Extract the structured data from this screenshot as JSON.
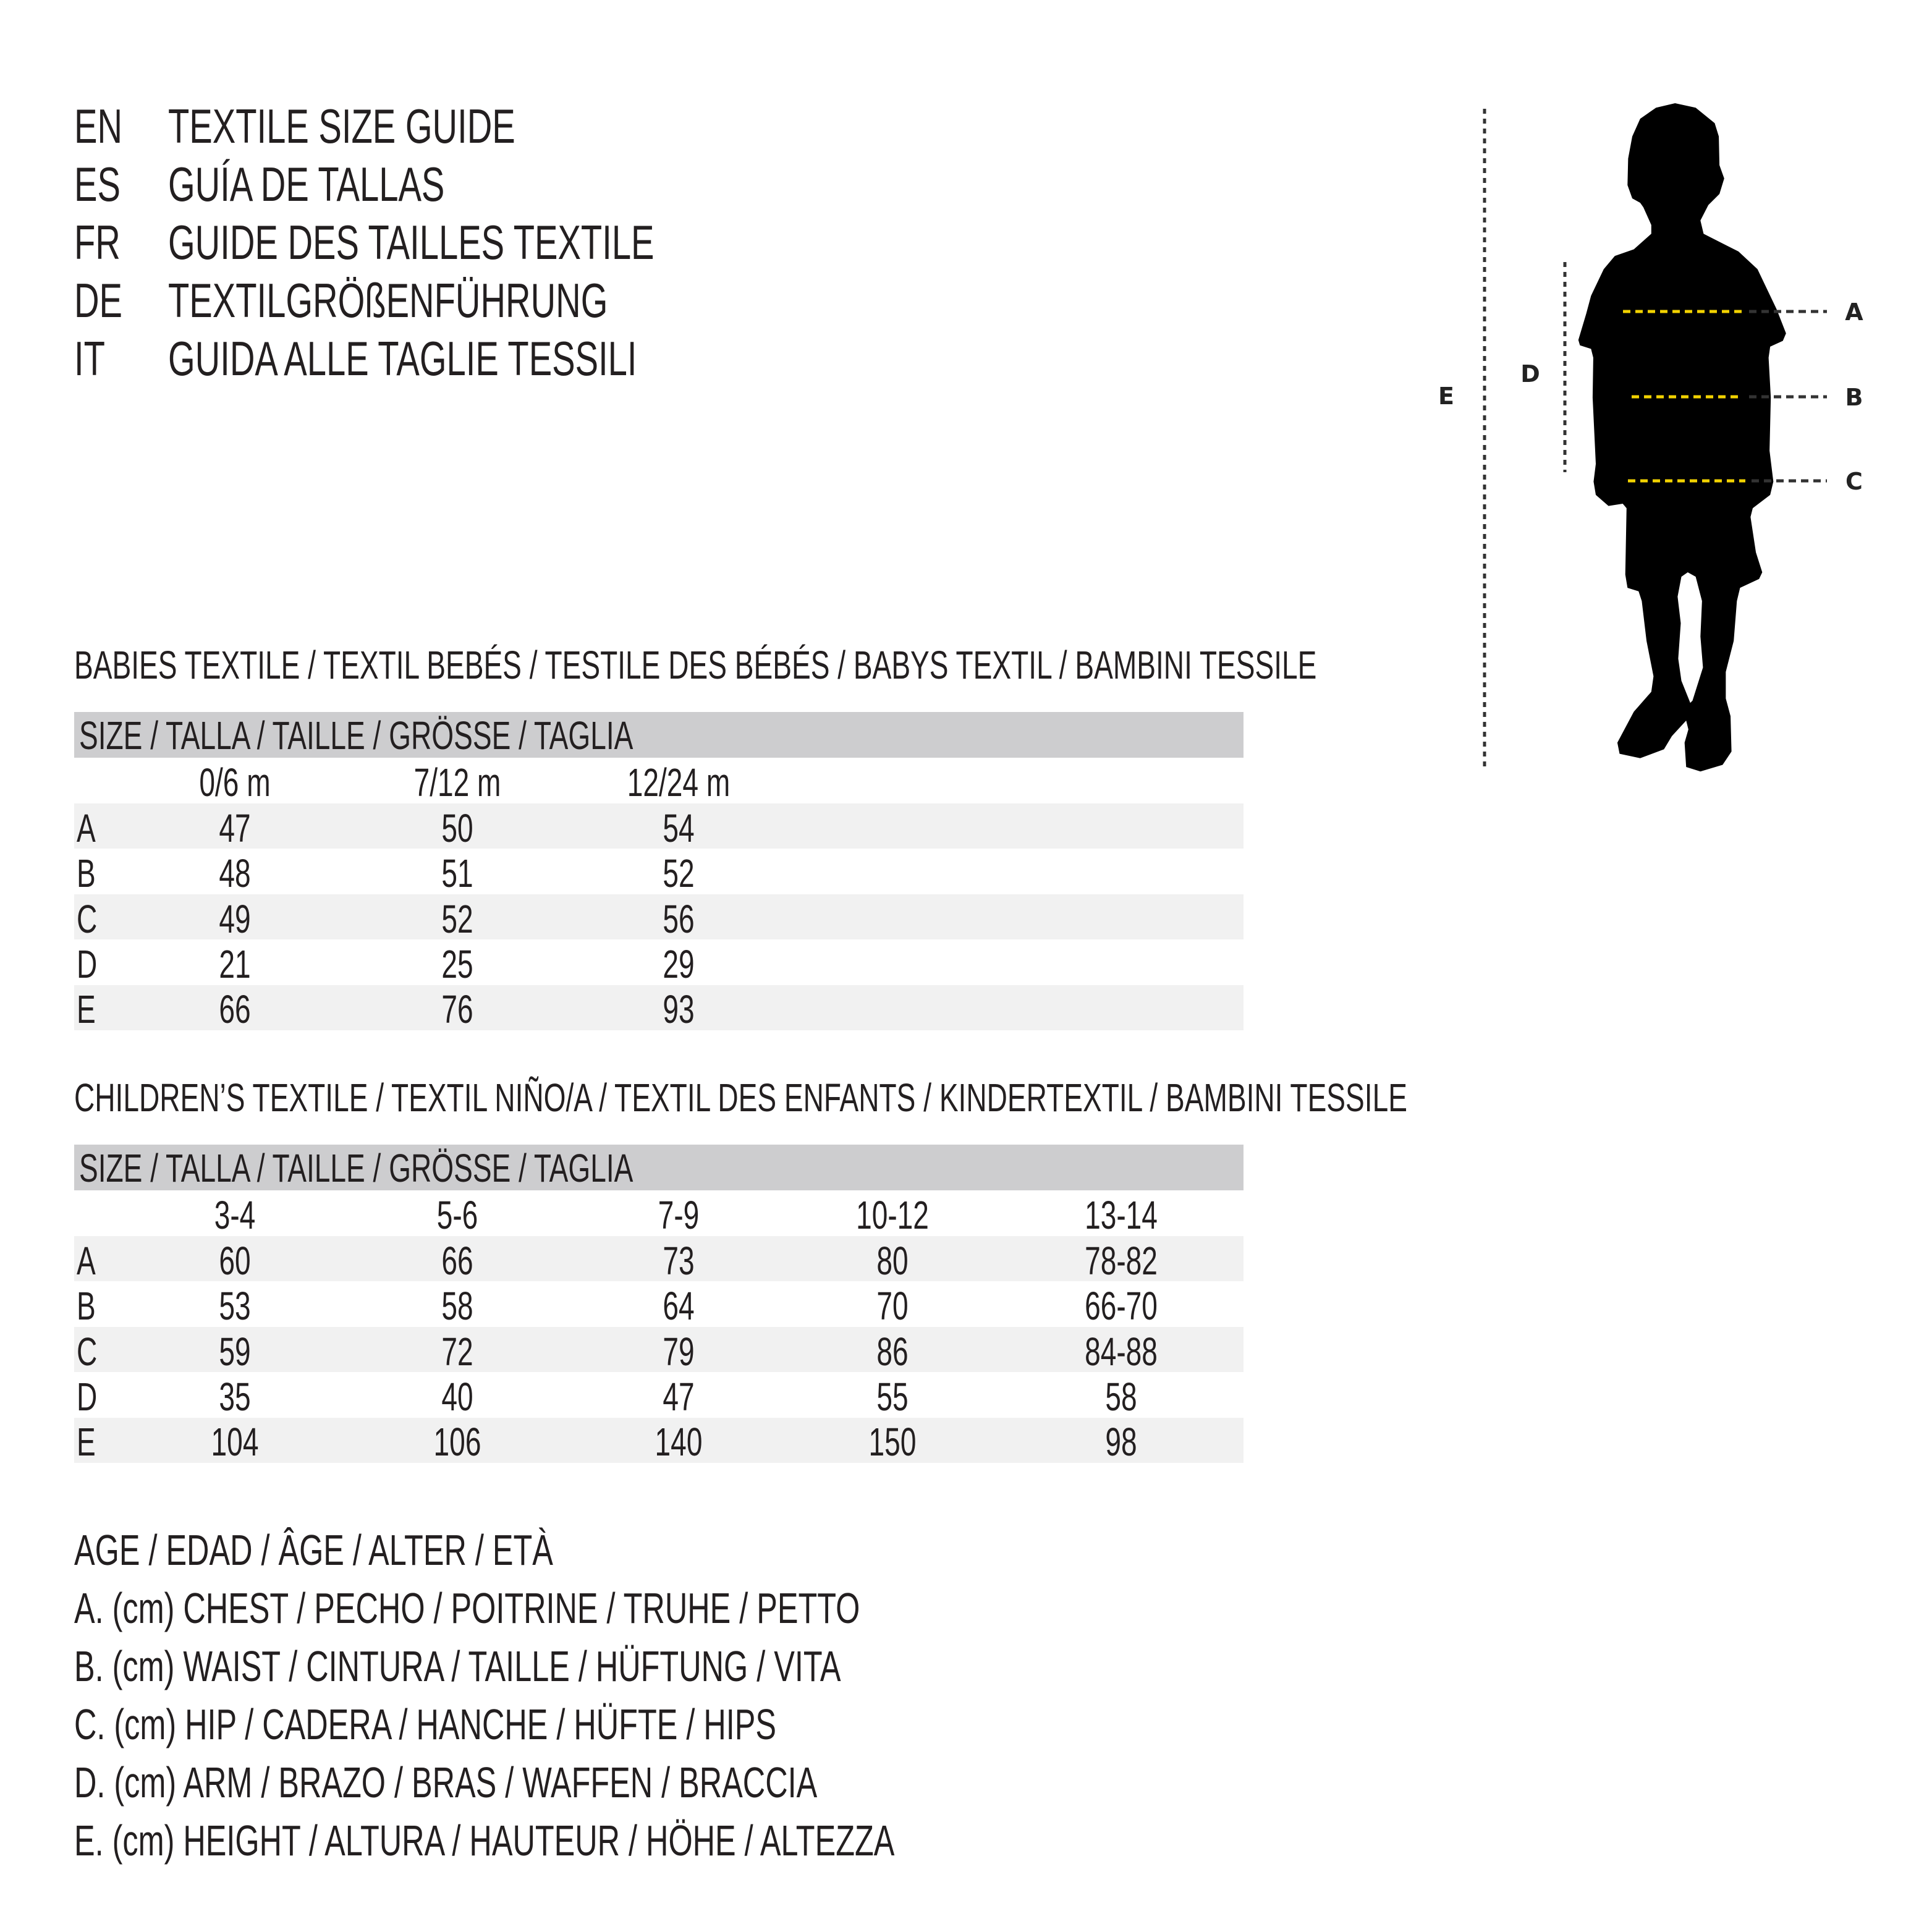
{
  "header": {
    "lines": [
      {
        "code": "EN",
        "text": "TEXTILE SIZE GUIDE"
      },
      {
        "code": "ES",
        "text": "GUÍA DE TALLAS"
      },
      {
        "code": "FR",
        "text": "GUIDE DES TAILLES TEXTILE"
      },
      {
        "code": "DE",
        "text": "TEXTILGRÖßENFÜHRUNG"
      },
      {
        "code": "IT",
        "text": "GUIDA ALLE TAGLIE TESSILI"
      }
    ]
  },
  "babies": {
    "title": "BABIES TEXTILE / TEXTIL BEBÉS / TESTILE DES BÉBÉS / BABYS TEXTIL / BAMBINI TESSILE",
    "size_header": "SIZE / TALLA / TAILLE / GRÖSSE / TAGLIA",
    "columns": [
      "0/6 m",
      "7/12 m",
      "12/24 m"
    ],
    "rows": [
      {
        "label": "A",
        "values": [
          "47",
          "50",
          "54"
        ]
      },
      {
        "label": "B",
        "values": [
          "48",
          "51",
          "52"
        ]
      },
      {
        "label": "C",
        "values": [
          "49",
          "52",
          "56"
        ]
      },
      {
        "label": "D",
        "values": [
          "21",
          "25",
          "29"
        ]
      },
      {
        "label": "E",
        "values": [
          "66",
          "76",
          "93"
        ]
      }
    ]
  },
  "children": {
    "title": "CHILDREN’S TEXTILE / TEXTIL NIÑO/A / TEXTIL DES ENFANTS / KINDERTEXTIL / BAMBINI TESSILE",
    "size_header": "SIZE / TALLA / TAILLE / GRÖSSE / TAGLIA",
    "columns": [
      "3-4",
      "5-6",
      "7-9",
      "10-12",
      "13-14"
    ],
    "rows": [
      {
        "label": "A",
        "values": [
          "60",
          "66",
          "73",
          "80",
          "78-82"
        ]
      },
      {
        "label": "B",
        "values": [
          "53",
          "58",
          "64",
          "70",
          "66-70"
        ]
      },
      {
        "label": "C",
        "values": [
          "59",
          "72",
          "79",
          "86",
          "84-88"
        ]
      },
      {
        "label": "D",
        "values": [
          "35",
          "40",
          "47",
          "55",
          "58"
        ]
      },
      {
        "label": "E",
        "values": [
          "104",
          "106",
          "140",
          "150",
          "98"
        ]
      }
    ]
  },
  "legend": {
    "age": "AGE / EDAD / ÂGE / ALTER / ETÀ",
    "items": [
      "A. (cm) CHEST / PECHO / POITRINE / TRUHE / PETTO",
      "B. (cm) WAIST / CINTURA / TAILLE / HÜFTUNG / VITA",
      "C. (cm) HIP / CADERA / HANCHE / HÜFTE / HIPS",
      "D. (cm) ARM / BRAZO / BRAS / WAFFEN / BRACCIA",
      "E. (cm) HEIGHT / ALTURA / HAUTEUR / HÖHE / ALTEZZA"
    ]
  },
  "diagram": {
    "labels": {
      "a": "A",
      "b": "B",
      "c": "C",
      "d": "D",
      "e": "E"
    },
    "icon": "child-silhouette-icon",
    "colors": {
      "measure_line": "#f2d200",
      "guide_line": "#333333",
      "silhouette": "#000000",
      "header_bar": "#cdcdcf",
      "row_shade": "#f1f1f1"
    }
  }
}
